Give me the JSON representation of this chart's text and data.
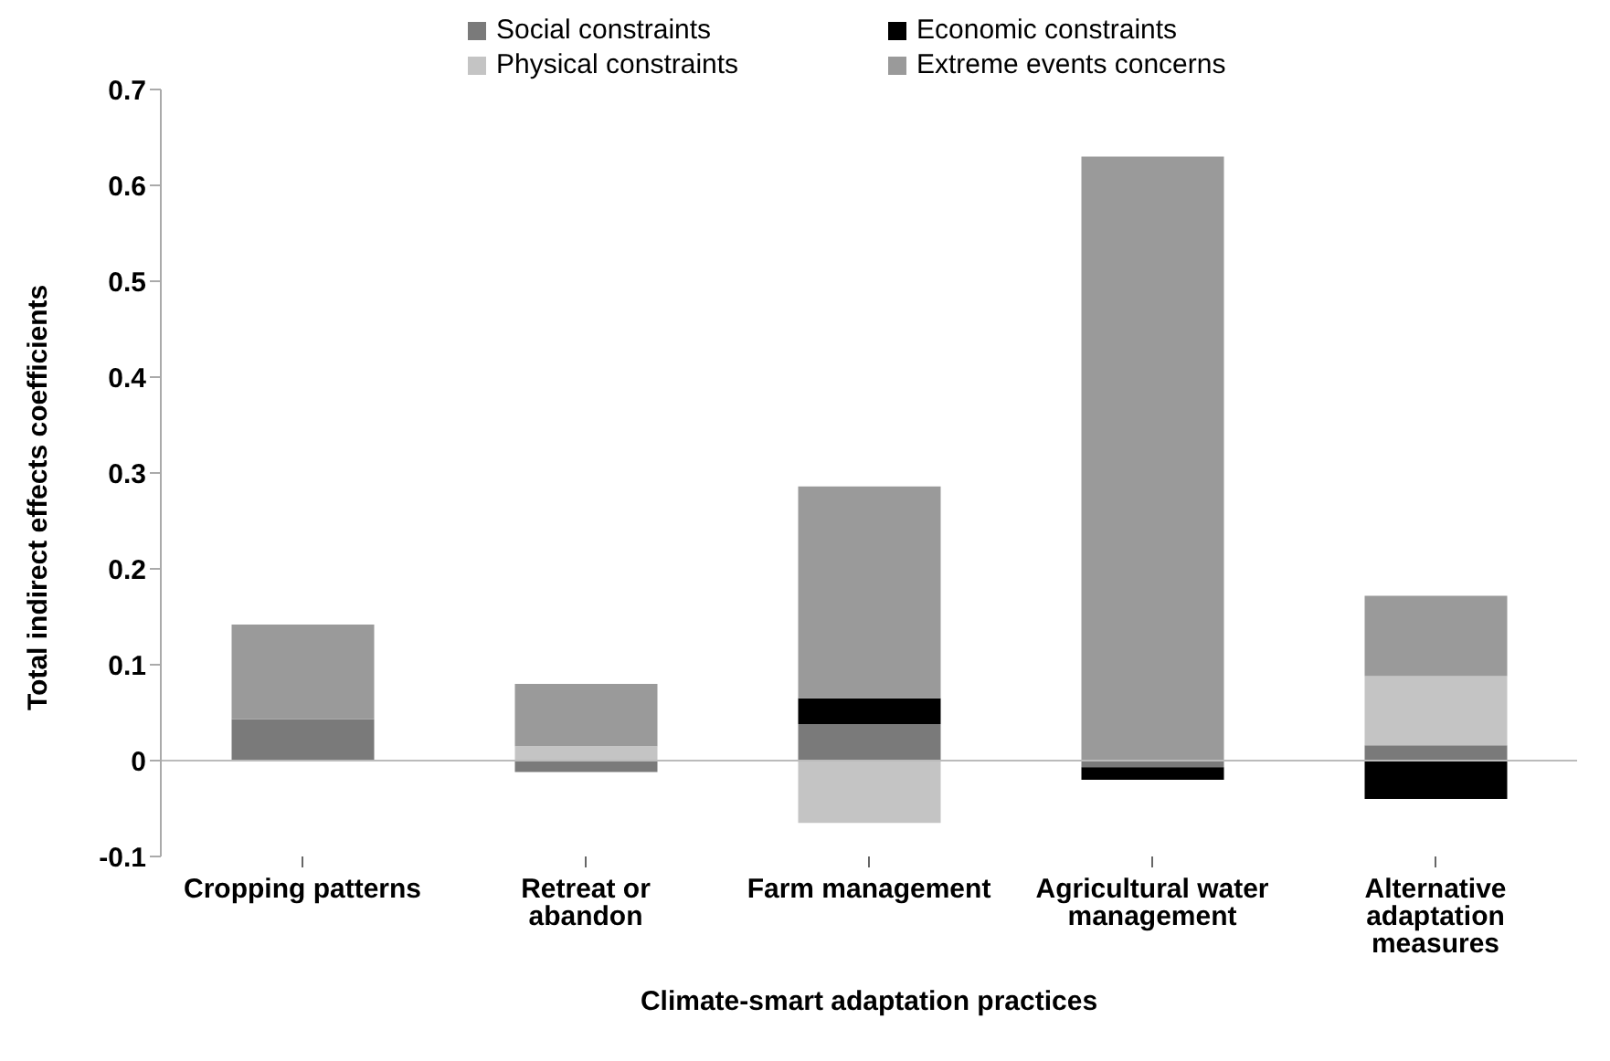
{
  "chart_data": {
    "type": "bar",
    "stacked": true,
    "xlabel": "Climate-smart adaptation practices",
    "ylabel": "Total indirect effects coefficients",
    "categories": [
      "Cropping patterns",
      "Retreat or abandon",
      "Farm management",
      "Agricultural water management",
      "Alternative adaptation measures"
    ],
    "series": [
      {
        "name": "Social constraints",
        "color": "#7a7a7a",
        "values": [
          0.043,
          -0.012,
          0.038,
          -0.007,
          0.016
        ]
      },
      {
        "name": "Economic constraints",
        "color": "#000000",
        "values": [
          0,
          0,
          0.027,
          -0.013,
          -0.04
        ]
      },
      {
        "name": "Physical constraints",
        "color": "#c4c4c4",
        "values": [
          null,
          0.015,
          -0.065,
          0,
          0.072
        ]
      },
      {
        "name": "Extreme events concerns",
        "color": "#9a9a9a",
        "values": [
          0.099,
          0.065,
          0.221,
          0.63,
          0.084
        ]
      }
    ],
    "ylim": [
      -0.1,
      0.7
    ],
    "yticks": [
      -0.1,
      0,
      0.1,
      0.2,
      0.3,
      0.4,
      0.5,
      0.6,
      0.7
    ],
    "ref_lines": [
      {
        "axis": "y",
        "value": 0,
        "color": "#bbbbbb"
      }
    ],
    "legend": "top"
  }
}
